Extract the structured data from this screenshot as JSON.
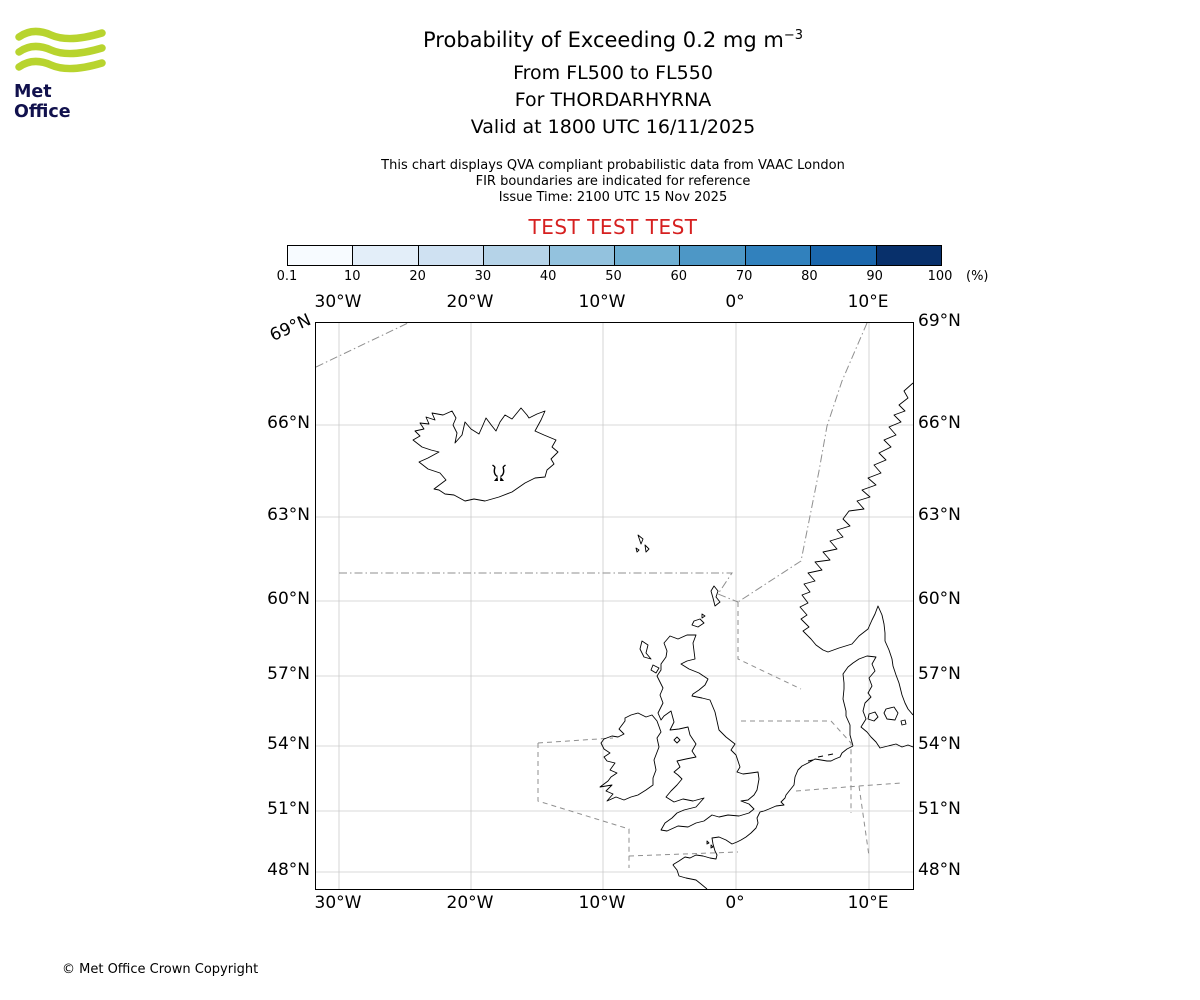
{
  "logo": {
    "text": "Met Office",
    "wave_color": "#b8d42e",
    "text_color": "#11114d"
  },
  "header": {
    "title_main": "Probability of Exceeding 0.2 mg m",
    "title_sup": "−3",
    "line2": "From FL500 to FL550",
    "line3": "For THORDARHYRNA",
    "line4": "Valid at 1800 UTC 16/11/2025",
    "info1": "This chart displays QVA compliant probabilistic data from VAAC London",
    "info2": "FIR boundaries are indicated for reference",
    "info3": "Issue Time: 2100 UTC 15 Nov 2025",
    "test_banner": "TEST TEST TEST",
    "test_color": "#d62020"
  },
  "colorbar": {
    "unit_label": "(%)",
    "tick_labels": [
      "0.1",
      "10",
      "20",
      "30",
      "40",
      "50",
      "60",
      "70",
      "80",
      "90",
      "100"
    ],
    "segment_colors": [
      "#f7fbff",
      "#e3eef9",
      "#cfe1f2",
      "#b5d3e8",
      "#93c2de",
      "#6fafd2",
      "#4d97c6",
      "#3181bd",
      "#1b67ac",
      "#08306b"
    ]
  },
  "map": {
    "top_labels": [
      "30°W",
      "20°W",
      "10°W",
      "0°",
      "10°E"
    ],
    "bottom_labels": [
      "30°W",
      "20°W",
      "10°W",
      "0°",
      "10°E"
    ],
    "left_labels": [
      "69°N",
      "66°N",
      "63°N",
      "60°N",
      "57°N",
      "54°N",
      "51°N",
      "48°N"
    ],
    "right_labels": [
      "69°N",
      "66°N",
      "63°N",
      "60°N",
      "57°N",
      "54°N",
      "51°N",
      "48°N"
    ]
  },
  "footer": {
    "copyright": "© Met Office Crown Copyright"
  }
}
